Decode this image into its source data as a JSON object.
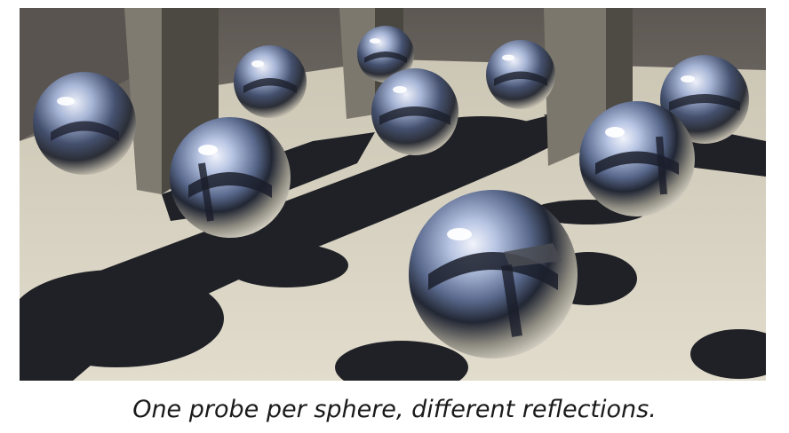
{
  "figure": {
    "caption": "One probe per sphere, different reflections.",
    "colors": {
      "back_wall": "#6a6560",
      "floor": "#d9d3c3",
      "pillar_light": "#7a766c",
      "pillar_dark": "#4a4740",
      "shadow": "#1e2024",
      "chrome_sky": "#a9b7d8"
    }
  }
}
